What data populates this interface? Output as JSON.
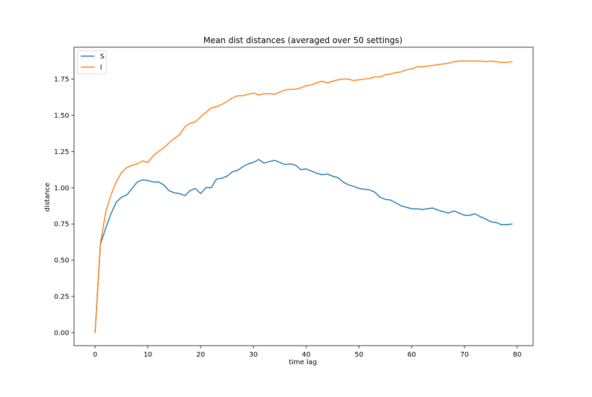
{
  "chart_data": {
    "type": "line",
    "title": "Mean dist distances (averaged over 50 settings)",
    "xlabel": "time lag",
    "ylabel": "distance",
    "xlim": [
      -4,
      83
    ],
    "ylim": [
      -0.09,
      1.97
    ],
    "xticks": [
      0,
      10,
      20,
      30,
      40,
      50,
      60,
      70,
      80
    ],
    "yticks": [
      0.0,
      0.25,
      0.5,
      0.75,
      1.0,
      1.25,
      1.5,
      1.75
    ],
    "xtick_labels": [
      "0",
      "10",
      "20",
      "30",
      "40",
      "50",
      "60",
      "70",
      "80"
    ],
    "ytick_labels": [
      "0.00",
      "0.25",
      "0.50",
      "0.75",
      "1.00",
      "1.25",
      "1.50",
      "1.75"
    ],
    "grid": false,
    "legend_position": "top-left",
    "x": [
      0,
      1,
      2,
      3,
      4,
      5,
      6,
      7,
      8,
      9,
      10,
      11,
      12,
      13,
      14,
      15,
      16,
      17,
      18,
      19,
      20,
      21,
      22,
      23,
      24,
      25,
      26,
      27,
      28,
      29,
      30,
      31,
      32,
      33,
      34,
      35,
      36,
      37,
      38,
      39,
      40,
      41,
      42,
      43,
      44,
      45,
      46,
      47,
      48,
      49,
      50,
      51,
      52,
      53,
      54,
      55,
      56,
      57,
      58,
      59,
      60,
      61,
      62,
      63,
      64,
      65,
      66,
      67,
      68,
      69,
      70,
      71,
      72,
      73,
      74,
      75,
      76,
      77,
      78,
      79
    ],
    "series": [
      {
        "name": "S",
        "color": "#1f77b4",
        "values": [
          0.0,
          0.61,
          0.72,
          0.82,
          0.9,
          0.935,
          0.95,
          0.995,
          1.04,
          1.055,
          1.05,
          1.04,
          1.04,
          1.02,
          0.98,
          0.965,
          0.96,
          0.945,
          0.98,
          0.995,
          0.96,
          1.0,
          1.0,
          1.06,
          1.065,
          1.08,
          1.11,
          1.12,
          1.145,
          1.165,
          1.175,
          1.195,
          1.17,
          1.18,
          1.19,
          1.175,
          1.16,
          1.165,
          1.155,
          1.125,
          1.13,
          1.115,
          1.1,
          1.09,
          1.095,
          1.08,
          1.07,
          1.04,
          1.02,
          1.01,
          0.995,
          0.99,
          0.985,
          0.97,
          0.935,
          0.92,
          0.915,
          0.895,
          0.875,
          0.865,
          0.855,
          0.855,
          0.85,
          0.855,
          0.86,
          0.845,
          0.835,
          0.825,
          0.84,
          0.825,
          0.81,
          0.81,
          0.82,
          0.8,
          0.785,
          0.765,
          0.76,
          0.745,
          0.745,
          0.75
        ]
      },
      {
        "name": "I",
        "color": "#ff7f0e",
        "values": [
          0.0,
          0.615,
          0.83,
          0.95,
          1.04,
          1.105,
          1.14,
          1.155,
          1.165,
          1.185,
          1.175,
          1.22,
          1.25,
          1.275,
          1.31,
          1.34,
          1.365,
          1.42,
          1.445,
          1.455,
          1.49,
          1.52,
          1.55,
          1.56,
          1.575,
          1.595,
          1.62,
          1.635,
          1.635,
          1.645,
          1.655,
          1.64,
          1.65,
          1.65,
          1.645,
          1.66,
          1.675,
          1.68,
          1.68,
          1.69,
          1.705,
          1.71,
          1.725,
          1.735,
          1.725,
          1.735,
          1.745,
          1.75,
          1.75,
          1.74,
          1.745,
          1.75,
          1.755,
          1.765,
          1.765,
          1.78,
          1.785,
          1.795,
          1.8,
          1.815,
          1.82,
          1.835,
          1.835,
          1.84,
          1.845,
          1.85,
          1.855,
          1.86,
          1.87,
          1.875,
          1.875,
          1.875,
          1.875,
          1.875,
          1.87,
          1.875,
          1.87,
          1.865,
          1.865,
          1.87
        ]
      }
    ]
  }
}
